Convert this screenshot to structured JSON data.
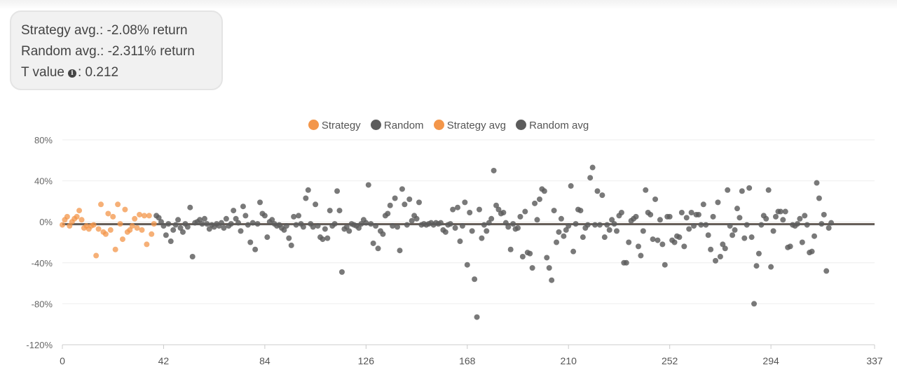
{
  "stats": {
    "strategy_label": "Strategy avg.:",
    "strategy_value": "-2.08% return",
    "random_label": "Random avg.:",
    "random_value": "-2.311% return",
    "t_label": "T value",
    "t_value": ": 0.212",
    "info_icon": "info-icon"
  },
  "colors": {
    "strategy": "#f3964a",
    "random": "#5c5c5c",
    "avg_line": "#6b5b50",
    "grid": "#eeeeee",
    "axis_text": "#666666"
  },
  "chart_data": {
    "type": "scatter",
    "legend": [
      "Strategy",
      "Random",
      "Strategy avg",
      "Random avg"
    ],
    "legend_position": "top",
    "xlim": [
      0,
      337
    ],
    "ylim": [
      -120,
      80
    ],
    "x_ticks": [
      "0",
      "42",
      "84",
      "126",
      "168",
      "210",
      "252",
      "294",
      "337"
    ],
    "y_ticks": [
      "80%",
      "40%",
      "0%",
      "-40%",
      "-80%",
      "-120%"
    ],
    "y_tick_values": [
      80,
      40,
      0,
      -40,
      -80,
      -120
    ],
    "x_tick_values": [
      0,
      42,
      84,
      126,
      168,
      210,
      252,
      294,
      337
    ],
    "grid": true,
    "series": [
      {
        "name": "Strategy",
        "points": [
          [
            0,
            -3
          ],
          [
            1,
            2
          ],
          [
            2,
            5
          ],
          [
            3,
            -4
          ],
          [
            4,
            0
          ],
          [
            5,
            3
          ],
          [
            6,
            5
          ],
          [
            7,
            11
          ],
          [
            8,
            2
          ],
          [
            9,
            -6
          ],
          [
            10,
            -4
          ],
          [
            11,
            -7
          ],
          [
            12,
            -4
          ],
          [
            13,
            -3
          ],
          [
            14,
            -33
          ],
          [
            15,
            -7
          ],
          [
            16,
            17
          ],
          [
            17,
            -10
          ],
          [
            18,
            -12
          ],
          [
            19,
            8
          ],
          [
            20,
            -8
          ],
          [
            21,
            5
          ],
          [
            22,
            -27
          ],
          [
            23,
            17
          ],
          [
            24,
            -2
          ],
          [
            25,
            -17
          ],
          [
            26,
            12
          ],
          [
            27,
            -10
          ],
          [
            28,
            -8
          ],
          [
            29,
            -4
          ],
          [
            30,
            3
          ],
          [
            31,
            -6
          ],
          [
            32,
            7
          ],
          [
            33,
            -8
          ],
          [
            34,
            6
          ],
          [
            35,
            -22
          ],
          [
            36,
            6
          ],
          [
            37,
            -12
          ],
          [
            38,
            -2
          ]
        ],
        "avg": -2.08
      },
      {
        "name": "Random",
        "points": [
          [
            39,
            6
          ],
          [
            40,
            4
          ],
          [
            41,
            0
          ],
          [
            42,
            -4
          ],
          [
            43,
            -13
          ],
          [
            44,
            -2
          ],
          [
            45,
            -19
          ],
          [
            46,
            -8
          ],
          [
            47,
            -3
          ],
          [
            48,
            2
          ],
          [
            49,
            -6
          ],
          [
            50,
            -10
          ],
          [
            51,
            -2
          ],
          [
            52,
            -5
          ],
          [
            53,
            14
          ],
          [
            54,
            -34
          ],
          [
            55,
            -1
          ],
          [
            56,
            0
          ],
          [
            57,
            2
          ],
          [
            58,
            -2
          ],
          [
            59,
            3
          ],
          [
            60,
            -2
          ],
          [
            61,
            -7
          ],
          [
            62,
            -3
          ],
          [
            63,
            -5
          ],
          [
            64,
            -2
          ],
          [
            65,
            -4
          ],
          [
            66,
            -1
          ],
          [
            67,
            -6
          ],
          [
            68,
            3
          ],
          [
            69,
            -4
          ],
          [
            70,
            -2
          ],
          [
            71,
            11
          ],
          [
            72,
            3
          ],
          [
            73,
            -1
          ],
          [
            74,
            -9
          ],
          [
            75,
            15
          ],
          [
            76,
            6
          ],
          [
            77,
            -3
          ],
          [
            78,
            -20
          ],
          [
            79,
            -1
          ],
          [
            80,
            -27
          ],
          [
            81,
            -2
          ],
          [
            82,
            19
          ],
          [
            83,
            8
          ],
          [
            84,
            6
          ],
          [
            85,
            -15
          ],
          [
            86,
            0
          ],
          [
            87,
            2
          ],
          [
            88,
            -2
          ],
          [
            89,
            -4
          ],
          [
            90,
            -3
          ],
          [
            91,
            -6
          ],
          [
            92,
            -8
          ],
          [
            93,
            -4
          ],
          [
            94,
            -16
          ],
          [
            95,
            -23
          ],
          [
            96,
            5
          ],
          [
            97,
            -3
          ],
          [
            98,
            6
          ],
          [
            99,
            -2
          ],
          [
            100,
            -5
          ],
          [
            101,
            23
          ],
          [
            102,
            31
          ],
          [
            103,
            -2
          ],
          [
            104,
            -5
          ],
          [
            105,
            17
          ],
          [
            106,
            -4
          ],
          [
            107,
            -15
          ],
          [
            108,
            -17
          ],
          [
            109,
            -7
          ],
          [
            110,
            -16
          ],
          [
            111,
            11
          ],
          [
            112,
            -4
          ],
          [
            113,
            -2
          ],
          [
            114,
            30
          ],
          [
            115,
            11
          ],
          [
            116,
            -49
          ],
          [
            117,
            -7
          ],
          [
            118,
            -5
          ],
          [
            119,
            -9
          ],
          [
            120,
            -2
          ],
          [
            121,
            -3
          ],
          [
            122,
            -4
          ],
          [
            123,
            -6
          ],
          [
            124,
            -2
          ],
          [
            125,
            2
          ],
          [
            126,
            -1
          ],
          [
            127,
            36
          ],
          [
            128,
            -2
          ],
          [
            129,
            -21
          ],
          [
            130,
            -4
          ],
          [
            131,
            -26
          ],
          [
            132,
            -9
          ],
          [
            133,
            -12
          ],
          [
            134,
            6
          ],
          [
            135,
            8
          ],
          [
            136,
            16
          ],
          [
            137,
            -4
          ],
          [
            138,
            23
          ],
          [
            139,
            -5
          ],
          [
            140,
            -28
          ],
          [
            141,
            32
          ],
          [
            142,
            17
          ],
          [
            143,
            -3
          ],
          [
            144,
            22
          ],
          [
            145,
            1
          ],
          [
            146,
            6
          ],
          [
            147,
            3
          ],
          [
            148,
            19
          ],
          [
            149,
            -3
          ],
          [
            150,
            -2
          ],
          [
            151,
            -3
          ],
          [
            152,
            -2
          ],
          [
            153,
            -1
          ],
          [
            154,
            -3
          ],
          [
            155,
            -1
          ],
          [
            156,
            -2
          ],
          [
            157,
            -1
          ],
          [
            158,
            -8
          ],
          [
            159,
            -10
          ],
          [
            160,
            -3
          ],
          [
            161,
            -2
          ],
          [
            162,
            12
          ],
          [
            163,
            -6
          ],
          [
            164,
            14
          ],
          [
            165,
            -19
          ],
          [
            166,
            -4
          ],
          [
            167,
            19
          ],
          [
            168,
            -42
          ],
          [
            169,
            9
          ],
          [
            170,
            -9
          ],
          [
            171,
            -56
          ],
          [
            172,
            -93
          ],
          [
            173,
            12
          ],
          [
            174,
            -16
          ],
          [
            175,
            -3
          ],
          [
            176,
            -9
          ],
          [
            177,
            -1
          ],
          [
            178,
            3
          ],
          [
            179,
            50
          ],
          [
            180,
            16
          ],
          [
            181,
            12
          ],
          [
            182,
            8
          ],
          [
            183,
            9
          ],
          [
            184,
            -1
          ],
          [
            185,
            -5
          ],
          [
            186,
            -27
          ],
          [
            187,
            -2
          ],
          [
            188,
            -7
          ],
          [
            189,
            -6
          ],
          [
            190,
            5
          ],
          [
            191,
            -34
          ],
          [
            192,
            10
          ],
          [
            193,
            -30
          ],
          [
            194,
            -31
          ],
          [
            195,
            -45
          ],
          [
            196,
            18
          ],
          [
            197,
            2
          ],
          [
            198,
            22
          ],
          [
            199,
            32
          ],
          [
            200,
            30
          ],
          [
            201,
            -35
          ],
          [
            202,
            -45
          ],
          [
            203,
            -57
          ],
          [
            204,
            11
          ],
          [
            205,
            -20
          ],
          [
            206,
            -10
          ],
          [
            207,
            3
          ],
          [
            208,
            -14
          ],
          [
            209,
            -8
          ],
          [
            210,
            -4
          ],
          [
            211,
            35
          ],
          [
            212,
            -29
          ],
          [
            213,
            -2
          ],
          [
            214,
            12
          ],
          [
            215,
            11
          ],
          [
            216,
            -15
          ],
          [
            217,
            -6
          ],
          [
            218,
            -3
          ],
          [
            219,
            43
          ],
          [
            220,
            53
          ],
          [
            221,
            -3
          ],
          [
            222,
            30
          ],
          [
            223,
            -3
          ],
          [
            224,
            26
          ],
          [
            225,
            -15
          ],
          [
            226,
            -3
          ],
          [
            227,
            -8
          ],
          [
            228,
            2
          ],
          [
            229,
            -2
          ],
          [
            230,
            -9
          ],
          [
            231,
            6
          ],
          [
            232,
            9
          ],
          [
            233,
            -40
          ],
          [
            234,
            -40
          ],
          [
            235,
            -20
          ],
          [
            236,
            1
          ],
          [
            237,
            3
          ],
          [
            238,
            5
          ],
          [
            239,
            -24
          ],
          [
            240,
            -33
          ],
          [
            241,
            -9
          ],
          [
            242,
            31
          ],
          [
            243,
            9
          ],
          [
            244,
            7
          ],
          [
            245,
            -17
          ],
          [
            246,
            22
          ],
          [
            247,
            -18
          ],
          [
            248,
            2
          ],
          [
            249,
            -22
          ],
          [
            250,
            -42
          ],
          [
            251,
            5
          ],
          [
            252,
            5
          ],
          [
            253,
            -18
          ],
          [
            254,
            -20
          ],
          [
            255,
            -14
          ],
          [
            256,
            -15
          ],
          [
            257,
            9
          ],
          [
            258,
            -24
          ],
          [
            259,
            4
          ],
          [
            260,
            -7
          ],
          [
            261,
            9
          ],
          [
            262,
            -4
          ],
          [
            263,
            7
          ],
          [
            264,
            7
          ],
          [
            265,
            -3
          ],
          [
            266,
            17
          ],
          [
            267,
            -3
          ],
          [
            268,
            -13
          ],
          [
            269,
            -27
          ],
          [
            270,
            5
          ],
          [
            271,
            -38
          ],
          [
            272,
            19
          ],
          [
            273,
            -34
          ],
          [
            274,
            -22
          ],
          [
            275,
            -26
          ],
          [
            276,
            31
          ],
          [
            277,
            -4
          ],
          [
            278,
            -13
          ],
          [
            279,
            -8
          ],
          [
            280,
            13
          ],
          [
            281,
            4
          ],
          [
            282,
            30
          ],
          [
            283,
            -16
          ],
          [
            284,
            -3
          ],
          [
            285,
            33
          ],
          [
            286,
            -15
          ],
          [
            287,
            -80
          ],
          [
            288,
            -43
          ],
          [
            289,
            -31
          ],
          [
            290,
            -3
          ],
          [
            291,
            6
          ],
          [
            292,
            3
          ],
          [
            293,
            31
          ],
          [
            294,
            -44
          ],
          [
            295,
            -9
          ],
          [
            296,
            5
          ],
          [
            297,
            10
          ],
          [
            298,
            10
          ],
          [
            299,
            2
          ],
          [
            300,
            10
          ],
          [
            301,
            -25
          ],
          [
            302,
            -24
          ],
          [
            303,
            -3
          ],
          [
            304,
            -4
          ],
          [
            305,
            -2
          ],
          [
            306,
            3
          ],
          [
            307,
            -20
          ],
          [
            308,
            6
          ],
          [
            309,
            -3
          ],
          [
            310,
            -30
          ],
          [
            311,
            -29
          ],
          [
            312,
            -14
          ],
          [
            313,
            38
          ],
          [
            314,
            23
          ],
          [
            315,
            -2
          ],
          [
            316,
            7
          ],
          [
            317,
            -48
          ],
          [
            318,
            -6
          ],
          [
            319,
            -1
          ]
        ],
        "avg": -2.311
      }
    ]
  }
}
